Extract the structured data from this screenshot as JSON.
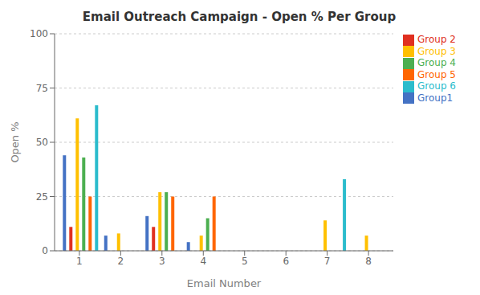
{
  "chart_data": {
    "type": "bar",
    "title": "Email Outreach Campaign - Open % Per Group",
    "xlabel": "Email Number",
    "ylabel": "Open %",
    "x": [
      1,
      2,
      3,
      4,
      7,
      8
    ],
    "xlim": [
      0.4,
      8.6
    ],
    "xticks": [
      1,
      2,
      3,
      4,
      5,
      6,
      7,
      8
    ],
    "ylim": [
      0,
      100
    ],
    "yticks": [
      0,
      25,
      50,
      75,
      100
    ],
    "grid": true,
    "legend": "right",
    "series": [
      {
        "name": "Group1",
        "color": "#4472C4",
        "values": [
          44,
          7,
          16,
          4,
          0,
          0
        ]
      },
      {
        "name": "Group 2",
        "color": "#E03020",
        "values": [
          11,
          0,
          11,
          0,
          0,
          0
        ]
      },
      {
        "name": "Group 3",
        "color": "#FFC000",
        "values": [
          61,
          8,
          27,
          7,
          14,
          7
        ]
      },
      {
        "name": "Group 4",
        "color": "#4CAF50",
        "values": [
          43,
          0,
          27,
          15,
          0,
          0
        ]
      },
      {
        "name": "Group 5",
        "color": "#FF6600",
        "values": [
          25,
          0,
          25,
          25,
          0,
          0
        ]
      },
      {
        "name": "Group 6",
        "color": "#2BBCCC",
        "values": [
          67,
          0,
          0,
          0,
          33,
          0
        ]
      }
    ]
  }
}
